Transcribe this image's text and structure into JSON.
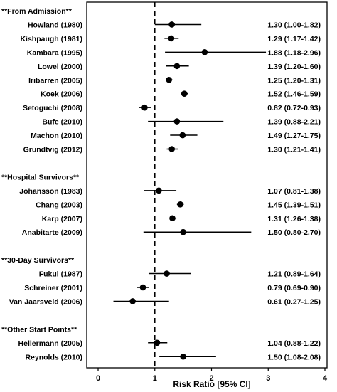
{
  "chart_data": {
    "type": "forest",
    "xlabel": "Risk Ratio [95% CI]",
    "xlim": [
      0,
      4
    ],
    "xticks": [
      0,
      1,
      2,
      3,
      4
    ],
    "reference_line": 1,
    "groups": [
      {
        "label": "**From Admission**",
        "studies": [
          {
            "label": "Howland (1980)",
            "estimate": 1.3,
            "lower": 1.0,
            "upper": 1.82,
            "ci_text": "1.30 (1.00-1.82)"
          },
          {
            "label": "Kishpaugh (1981)",
            "estimate": 1.29,
            "lower": 1.17,
            "upper": 1.42,
            "ci_text": "1.29 (1.17-1.42)"
          },
          {
            "label": "Kambara (1995)",
            "estimate": 1.88,
            "lower": 1.18,
            "upper": 2.96,
            "ci_text": "1.88 (1.18-2.96)"
          },
          {
            "label": "Lowel (2000)",
            "estimate": 1.39,
            "lower": 1.2,
            "upper": 1.6,
            "ci_text": "1.39 (1.20-1.60)"
          },
          {
            "label": "Iribarren (2005)",
            "estimate": 1.25,
            "lower": 1.2,
            "upper": 1.31,
            "ci_text": "1.25 (1.20-1.31)"
          },
          {
            "label": "Koek (2006)",
            "estimate": 1.52,
            "lower": 1.46,
            "upper": 1.59,
            "ci_text": "1.52 (1.46-1.59)"
          },
          {
            "label": "Setoguchi (2008)",
            "estimate": 0.82,
            "lower": 0.72,
            "upper": 0.93,
            "ci_text": "0.82 (0.72-0.93)"
          },
          {
            "label": "Bufe (2010)",
            "estimate": 1.39,
            "lower": 0.88,
            "upper": 2.21,
            "ci_text": "1.39 (0.88-2.21)"
          },
          {
            "label": "Machon (2010)",
            "estimate": 1.49,
            "lower": 1.27,
            "upper": 1.75,
            "ci_text": "1.49 (1.27-1.75)"
          },
          {
            "label": "Grundtvig (2012)",
            "estimate": 1.3,
            "lower": 1.21,
            "upper": 1.41,
            "ci_text": "1.30 (1.21-1.41)"
          }
        ]
      },
      {
        "label": "**Hospital Survivors**",
        "studies": [
          {
            "label": "Johansson (1983)",
            "estimate": 1.07,
            "lower": 0.81,
            "upper": 1.38,
            "ci_text": "1.07 (0.81-1.38)"
          },
          {
            "label": "Chang (2003)",
            "estimate": 1.45,
            "lower": 1.39,
            "upper": 1.51,
            "ci_text": "1.45 (1.39-1.51)"
          },
          {
            "label": "Karp (2007)",
            "estimate": 1.31,
            "lower": 1.26,
            "upper": 1.38,
            "ci_text": "1.31 (1.26-1.38)"
          },
          {
            "label": "Anabitarte (2009)",
            "estimate": 1.5,
            "lower": 0.8,
            "upper": 2.7,
            "ci_text": "1.50 (0.80-2.70)"
          }
        ]
      },
      {
        "label": "**30-Day Survivors**",
        "studies": [
          {
            "label": "Fukui (1987)",
            "estimate": 1.21,
            "lower": 0.89,
            "upper": 1.64,
            "ci_text": "1.21 (0.89-1.64)"
          },
          {
            "label": "Schreiner (2001)",
            "estimate": 0.79,
            "lower": 0.69,
            "upper": 0.9,
            "ci_text": "0.79 (0.69-0.90)"
          },
          {
            "label": "Van Jaarsveld (2006)",
            "estimate": 0.61,
            "lower": 0.27,
            "upper": 1.25,
            "ci_text": "0.61 (0.27-1.25)"
          }
        ]
      },
      {
        "label": "**Other Start Points**",
        "studies": [
          {
            "label": "Hellermann (2005)",
            "estimate": 1.04,
            "lower": 0.88,
            "upper": 1.22,
            "ci_text": "1.04 (0.88-1.22)"
          },
          {
            "label": "Reynolds (2010)",
            "estimate": 1.5,
            "lower": 1.08,
            "upper": 2.08,
            "ci_text": "1.50 (1.08-2.08)"
          }
        ]
      }
    ]
  }
}
